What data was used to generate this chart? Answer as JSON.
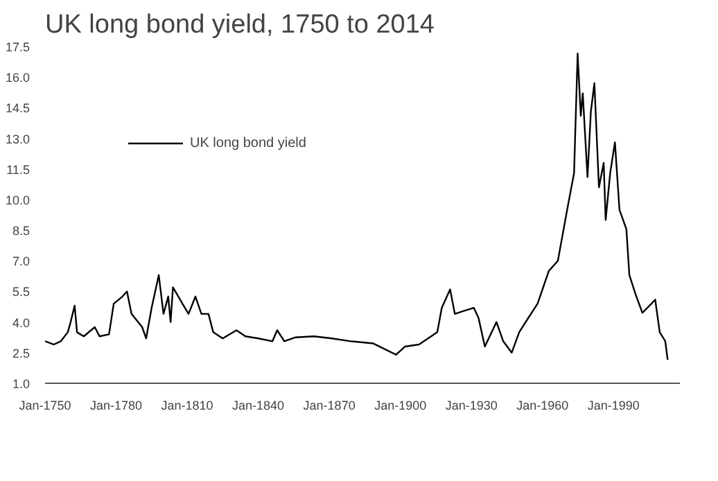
{
  "chart_data": {
    "type": "line",
    "title": "UK long bond yield, 1750 to 2014",
    "x": [
      "1750-01",
      "1753-10",
      "1756-09",
      "1759-08",
      "1760-08",
      "1762-07",
      "1763-07",
      "1766-05",
      "1771-01",
      "1773-01",
      "1777-01",
      "1779-01",
      "1782-09",
      "1784-08",
      "1786-07",
      "1791-01",
      "1792-09",
      "1795-01",
      "1798-01",
      "1800-01",
      "1802-01",
      "1803-01",
      "1804-01",
      "1808-01",
      "1810-08",
      "1813-07",
      "1816-01",
      "1819-01",
      "1821-01",
      "1825-01",
      "1830-11",
      "1834-08",
      "1840-01",
      "1846-01",
      "1848-01",
      "1851-01",
      "1855-11",
      "1863-07",
      "1871-01",
      "1879-01",
      "1888-08",
      "1898-03",
      "1902-01",
      "1907-12",
      "1915-08",
      "1917-07",
      "1921-01",
      "1923-01",
      "1927-01",
      "1931-01",
      "1933-01",
      "1935-09",
      "1940-08",
      "1943-06",
      "1947-01",
      "1950-03",
      "1954-01",
      "1957-12",
      "1962-09",
      "1966-07",
      "1970-06",
      "1973-05",
      "1974-11",
      "1976-03",
      "1977-01",
      "1979-01",
      "1980-06",
      "1981-12",
      "1983-11",
      "1985-11",
      "1986-09",
      "1988-08",
      "1990-08",
      "1992-07",
      "1995-06",
      "1996-09",
      "1999-05",
      "2002-03",
      "2006-01",
      "2007-08",
      "2009-07",
      "2011-11",
      "2012-11"
    ],
    "series": [
      {
        "name": "UK long bond yield",
        "color": "#000000",
        "values": [
          3.06,
          2.9,
          3.06,
          3.5,
          3.9,
          4.8,
          3.5,
          3.3,
          3.75,
          3.3,
          3.4,
          4.9,
          5.25,
          5.5,
          4.4,
          3.75,
          3.2,
          4.7,
          6.3,
          4.4,
          5.25,
          4.0,
          5.7,
          4.9,
          4.4,
          5.25,
          4.4,
          4.4,
          3.5,
          3.2,
          3.6,
          3.3,
          3.2,
          3.06,
          3.6,
          3.06,
          3.25,
          3.3,
          3.2,
          3.06,
          2.95,
          2.4,
          2.8,
          2.9,
          3.5,
          4.7,
          5.6,
          4.4,
          4.55,
          4.7,
          4.2,
          2.8,
          4.0,
          3.06,
          2.5,
          3.5,
          4.2,
          4.9,
          6.5,
          7.0,
          9.5,
          11.3,
          17.15,
          14.1,
          15.2,
          11.1,
          14.3,
          15.7,
          10.6,
          11.8,
          9.0,
          11.3,
          12.8,
          9.5,
          8.55,
          6.3,
          5.35,
          4.45,
          4.9,
          5.1,
          3.5,
          3.06,
          2.15
        ]
      }
    ],
    "xlim": [
      "1750-01",
      "2018-01"
    ],
    "xticks": [
      {
        "value": "1750-01",
        "label": "Jan-1750"
      },
      {
        "value": "1780-01",
        "label": "Jan-1780"
      },
      {
        "value": "1810-01",
        "label": "Jan-1810"
      },
      {
        "value": "1840-01",
        "label": "Jan-1840"
      },
      {
        "value": "1870-01",
        "label": "Jan-1870"
      },
      {
        "value": "1900-01",
        "label": "Jan-1900"
      },
      {
        "value": "1930-01",
        "label": "Jan-1930"
      },
      {
        "value": "1960-01",
        "label": "Jan-1960"
      },
      {
        "value": "1990-01",
        "label": "Jan-1990"
      }
    ],
    "ylim": [
      1.0,
      17.5
    ],
    "yticks": [
      {
        "value": 1.0,
        "label": "1.0"
      },
      {
        "value": 2.5,
        "label": "2.5"
      },
      {
        "value": 4.0,
        "label": "4.0"
      },
      {
        "value": 5.5,
        "label": "5.5"
      },
      {
        "value": 7.0,
        "label": "7.0"
      },
      {
        "value": 8.5,
        "label": "8.5"
      },
      {
        "value": 10.0,
        "label": "10.0"
      },
      {
        "value": 11.5,
        "label": "11.5"
      },
      {
        "value": 13.0,
        "label": "13.0"
      },
      {
        "value": 14.5,
        "label": "14.5"
      },
      {
        "value": 16.0,
        "label": "16.0"
      },
      {
        "value": 17.5,
        "label": "17.5"
      }
    ],
    "legend": "top left",
    "grid": false
  }
}
